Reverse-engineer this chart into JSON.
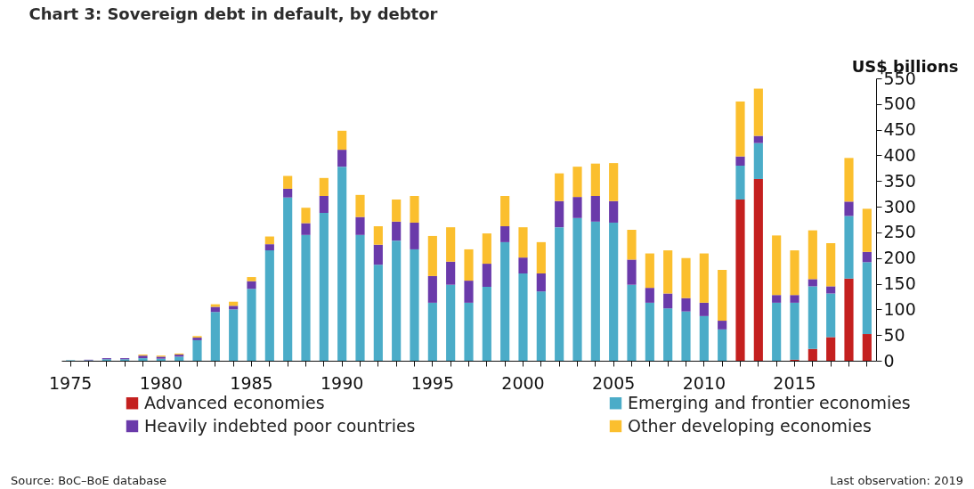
{
  "chart_data": {
    "type": "bar",
    "stacked": true,
    "title": "Chart 3:  Sovereign debt in default, by debtor",
    "ylabel": "US$ billions",
    "categories": [
      "1975",
      null,
      null,
      null,
      null,
      "1980",
      null,
      null,
      null,
      null,
      "1985",
      null,
      null,
      null,
      null,
      "1990",
      null,
      null,
      null,
      null,
      "1995",
      null,
      null,
      null,
      null,
      "2000",
      null,
      null,
      null,
      null,
      "2005",
      null,
      null,
      null,
      null,
      "2010",
      null,
      null,
      null,
      null,
      "2015",
      null,
      null,
      null,
      null
    ],
    "series": [
      {
        "name": "Advanced economies",
        "color": "#c4201f",
        "values": [
          0,
          0,
          0,
          0,
          0,
          0,
          0,
          0,
          0,
          0,
          0,
          0,
          0,
          0,
          0,
          0,
          0,
          0,
          0,
          0,
          0,
          0,
          0,
          0,
          0,
          0,
          0,
          0,
          0,
          0,
          0,
          0,
          0,
          0,
          0,
          0,
          0,
          314,
          354,
          0,
          2,
          23,
          46,
          160,
          52
        ]
      },
      {
        "name": "Emerging and frontier economies",
        "color": "#4bacc8",
        "values": [
          1,
          1,
          3,
          3,
          5,
          4,
          8,
          40,
          95,
          100,
          140,
          215,
          318,
          245,
          288,
          378,
          245,
          187,
          234,
          217,
          113,
          148,
          113,
          144,
          231,
          170,
          135,
          260,
          278,
          271,
          269,
          148,
          113,
          102,
          96,
          87,
          61,
          66,
          70,
          113,
          111,
          122,
          85,
          122,
          140
        ]
      },
      {
        "name": "Heavily indebted poor countries",
        "color": "#6a3aaa",
        "values": [
          0,
          1,
          2,
          2,
          5,
          4,
          4,
          5,
          10,
          7,
          15,
          12,
          17,
          23,
          33,
          33,
          35,
          39,
          37,
          52,
          52,
          45,
          43,
          45,
          31,
          31,
          35,
          51,
          41,
          50,
          42,
          49,
          29,
          29,
          26,
          26,
          17,
          18,
          14,
          15,
          15,
          14,
          14,
          28,
          20
        ]
      },
      {
        "name": "Other developing economies",
        "color": "#fbbf2e",
        "values": [
          0,
          0,
          null,
          null,
          2,
          2,
          2,
          3,
          5,
          8,
          8,
          15,
          25,
          30,
          35,
          37,
          43,
          36,
          43,
          52,
          78,
          67,
          61,
          59,
          59,
          59,
          61,
          54,
          59,
          63,
          74,
          58,
          67,
          84,
          78,
          96,
          99,
          107,
          92,
          116,
          87,
          95,
          84,
          85,
          84
        ]
      }
    ],
    "ylim": [
      0,
      550
    ],
    "yticks": [
      0,
      50,
      100,
      150,
      200,
      250,
      300,
      350,
      400,
      450,
      500,
      550
    ],
    "grid": false,
    "legend": "bottom",
    "annotations": [
      "Source: BoC–BoE database",
      "Last observation: 2019"
    ]
  }
}
